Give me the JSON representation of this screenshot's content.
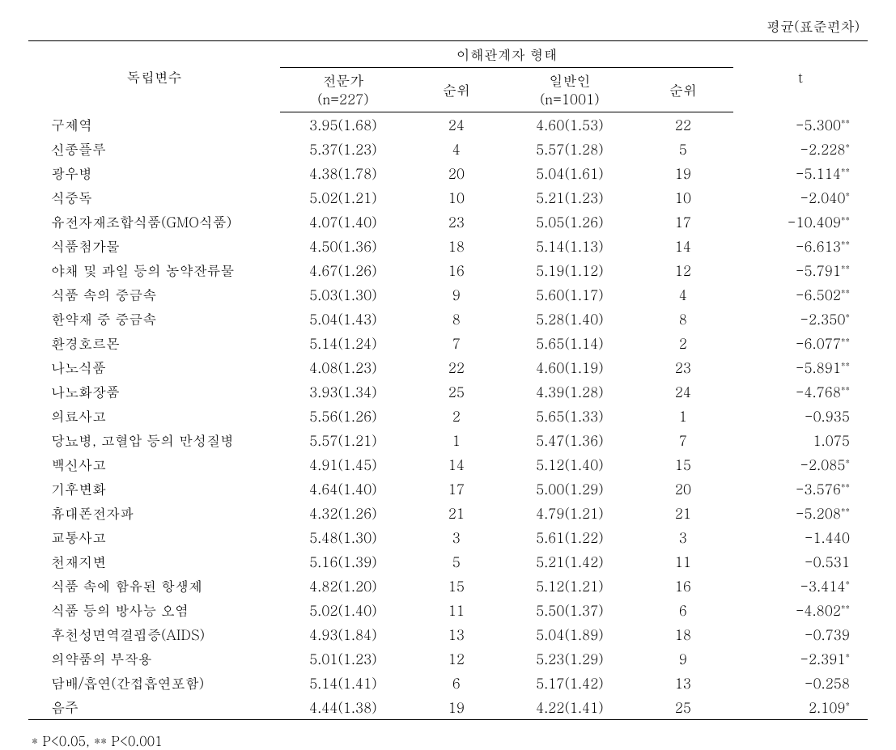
{
  "caption": "평균(표준편차)",
  "header": {
    "col1": "독립변수",
    "group": "이해관계자 형태",
    "expert": "전문가",
    "expert_n": "(n=227)",
    "rank1": "순위",
    "public": "일반인",
    "public_n": "(n=1001)",
    "rank2": "순위",
    "t": "t"
  },
  "rows": [
    {
      "label": "구제역",
      "expert": "3.95(1.68)",
      "r1": "24",
      "public": "4.60(1.53)",
      "r2": "22",
      "t": "-5.300",
      "sig": "**"
    },
    {
      "label": "신종플루",
      "expert": "5.37(1.23)",
      "r1": "4",
      "public": "5.57(1.28)",
      "r2": "5",
      "t": "-2.228",
      "sig": "*"
    },
    {
      "label": "광우병",
      "expert": "4.38(1.78)",
      "r1": "20",
      "public": "5.04(1.61)",
      "r2": "19",
      "t": "-5.114",
      "sig": "**"
    },
    {
      "label": "식중독",
      "expert": "5.02(1.21)",
      "r1": "10",
      "public": "5.21(1.23)",
      "r2": "10",
      "t": "-2.040",
      "sig": "*"
    },
    {
      "label": "유전자재조합식품(GMO식품)",
      "expert": "4.07(1.40)",
      "r1": "23",
      "public": "5.05(1.26)",
      "r2": "17",
      "t": "-10.409",
      "sig": "**"
    },
    {
      "label": "식품첨가물",
      "expert": "4.50(1.36)",
      "r1": "18",
      "public": "5.14(1.13)",
      "r2": "14",
      "t": "-6.613",
      "sig": "**"
    },
    {
      "label": "야채 및 과일 등의 농약잔류물",
      "expert": "4.67(1.26)",
      "r1": "16",
      "public": "5.19(1.12)",
      "r2": "12",
      "t": "-5.791",
      "sig": "**"
    },
    {
      "label": "식품 속의 중금속",
      "expert": "5.03(1.30)",
      "r1": "9",
      "public": "5.60(1.17)",
      "r2": "4",
      "t": "-6.502",
      "sig": "**"
    },
    {
      "label": "한약재 중 중금속",
      "expert": "5.04(1.43)",
      "r1": "8",
      "public": "5.28(1.40)",
      "r2": "8",
      "t": "-2.350",
      "sig": "*"
    },
    {
      "label": "환경호르몬",
      "expert": "5.14(1.24)",
      "r1": "7",
      "public": "5.65(1.14)",
      "r2": "2",
      "t": "-6.077",
      "sig": "**"
    },
    {
      "label": "나노식품",
      "expert": "4.08(1.23)",
      "r1": "22",
      "public": "4.60(1.19)",
      "r2": "23",
      "t": "-5.891",
      "sig": "**"
    },
    {
      "label": "나노화장품",
      "expert": "3.93(1.34)",
      "r1": "25",
      "public": "4.39(1.28)",
      "r2": "24",
      "t": "-4.768",
      "sig": "**"
    },
    {
      "label": "의료사고",
      "expert": "5.56(1.26)",
      "r1": "2",
      "public": "5.65(1.33)",
      "r2": "1",
      "t": "-0.935",
      "sig": ""
    },
    {
      "label": "당뇨병, 고혈압 등의 만성질병",
      "expert": "5.57(1.21)",
      "r1": "1",
      "public": "5.47(1.36)",
      "r2": "7",
      "t": "1.075",
      "sig": ""
    },
    {
      "label": "백신사고",
      "expert": "4.91(1.45)",
      "r1": "14",
      "public": "5.12(1.40)",
      "r2": "15",
      "t": "-2.085",
      "sig": "*"
    },
    {
      "label": "기후변화",
      "expert": "4.64(1.40)",
      "r1": "17",
      "public": "5.00(1.29)",
      "r2": "20",
      "t": "-3.576",
      "sig": "**"
    },
    {
      "label": "휴대폰전자파",
      "expert": "4.32(1.26)",
      "r1": "21",
      "public": "4.79(1.21)",
      "r2": "21",
      "t": "-5.208",
      "sig": "**"
    },
    {
      "label": "교통사고",
      "expert": "5.48(1.30)",
      "r1": "3",
      "public": "5.61(1.22)",
      "r2": "3",
      "t": "-1.440",
      "sig": ""
    },
    {
      "label": "천재지변",
      "expert": "5.16(1.39)",
      "r1": "5",
      "public": "5.21(1.42)",
      "r2": "11",
      "t": "-0.531",
      "sig": ""
    },
    {
      "label": "식품 속에 함유된 항생제",
      "expert": "4.82(1.20)",
      "r1": "15",
      "public": "5.12(1.21)",
      "r2": "16",
      "t": "-3.414",
      "sig": "*"
    },
    {
      "label": "식품 등의 방사능 오염",
      "expert": "5.02(1.40)",
      "r1": "11",
      "public": "5.50(1.37)",
      "r2": "6",
      "t": "-4.802",
      "sig": "**"
    },
    {
      "label": "후천성면역결핍증(AIDS)",
      "expert": "4.93(1.84)",
      "r1": "13",
      "public": "5.04(1.89)",
      "r2": "18",
      "t": "-0.739",
      "sig": ""
    },
    {
      "label": "의약품의 부작용",
      "expert": "5.01(1.23)",
      "r1": "12",
      "public": "5.23(1.29)",
      "r2": "9",
      "t": "-2.391",
      "sig": "*"
    },
    {
      "label": "담배/흡연(간접흡연포함)",
      "expert": "5.14(1.41)",
      "r1": "6",
      "public": "5.17(1.42)",
      "r2": "13",
      "t": "-0.258",
      "sig": ""
    },
    {
      "label": "음주",
      "expert": "4.44(1.38)",
      "r1": "19",
      "public": "4.22(1.41)",
      "r2": "25",
      "t": "2.109",
      "sig": "*"
    }
  ],
  "footnote": "* P<0.05, ** P<0.001",
  "columns_style": {
    "col_widths": [
      "30%",
      "15%",
      "12%",
      "15%",
      "12%",
      "16%"
    ],
    "text_color": "#000000",
    "background_color": "#ffffff",
    "border_color": "#000000",
    "font_size_body": 17,
    "font_size_sup": 11
  }
}
